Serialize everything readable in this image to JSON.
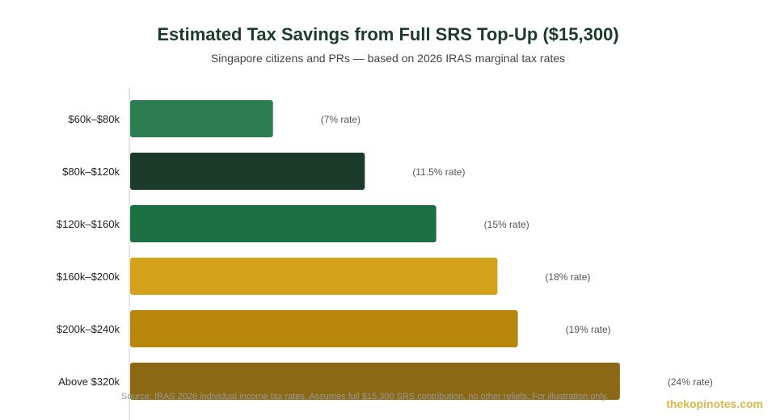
{
  "chart_data": {
    "type": "bar",
    "orientation": "horizontal",
    "title": "Estimated Tax Savings from Full SRS Top-Up ($15,300)",
    "subtitle": "Singapore citizens and PRs — based on 2026 IRAS marginal tax rates",
    "categories": [
      "$60k–$80k",
      "$80k–$120k",
      "$120k–$160k",
      "$160k–$200k",
      "$200k–$240k",
      "Above $320k"
    ],
    "values": [
      1071,
      1759.5,
      2295,
      2754,
      2907,
      3672
    ],
    "annotations": [
      "(7% rate)",
      "(11.5% rate)",
      "(15% rate)",
      "(18% rate)",
      "(19% rate)",
      "(24% rate)"
    ],
    "colors": [
      "#2e7d52",
      "#1b3a2a",
      "#1c6e43",
      "#d4a11a",
      "#b8860b",
      "#8b6914"
    ],
    "xlim": [
      0,
      4000
    ],
    "grid": false,
    "legend": "none"
  },
  "footer": {
    "source": "Source: IRAS 2026 individual income tax rates. Assumes full $15,300 SRS contribution, no other reliefs. For illustration only.",
    "brand": "thekopinotes.com"
  }
}
